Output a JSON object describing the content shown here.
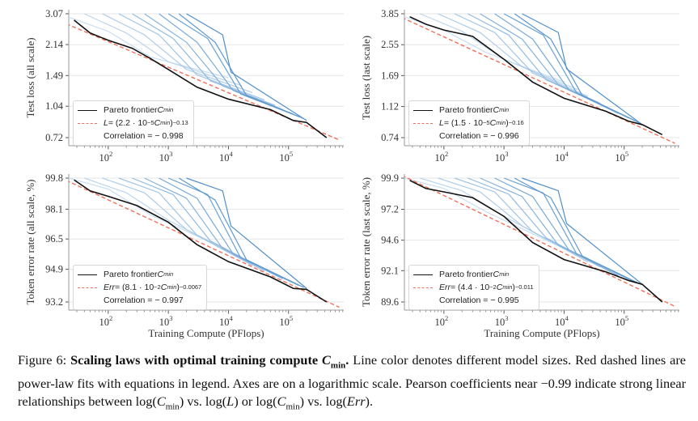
{
  "colors": {
    "frontier": "#111111",
    "fit": "#f0705a",
    "model_light": "#c9def1",
    "model_dark": "#4f8fca",
    "grid": "#e6e6e6"
  },
  "x_label": "Training Compute (PFlops)",
  "chart_data": [
    {
      "type": "line",
      "id": "tl",
      "ylabel": "Test loss (all scale)",
      "xscale": "log",
      "yscale": "log",
      "xlim": [
        22,
        830000
      ],
      "xticks": [
        {
          "v": 100,
          "base": "10",
          "exp": "2"
        },
        {
          "v": 1000,
          "base": "10",
          "exp": "3"
        },
        {
          "v": 10000,
          "base": "10",
          "exp": "4"
        },
        {
          "v": 100000,
          "base": "10",
          "exp": "5"
        }
      ],
      "yticks": [
        "3.07",
        "2.14",
        "1.49",
        "1.04",
        "0.72"
      ],
      "legend": {
        "position": "lower-left",
        "frontier_text": "Pareto frontier ",
        "frontier_sym": "C",
        "frontier_sub": "min",
        "fit_var": "L",
        "fit_pre": " = (2.2 · 10",
        "fit_exp1": "−5",
        "fit_mid": " C",
        "fit_sub": "min",
        "fit_post": ")",
        "fit_exp2": "−0.13",
        "corr": "Correlation  = − 0.998"
      },
      "fit": {
        "a": 2.2e-05,
        "b": -0.13,
        "scale": 1,
        "x_range": [
          20,
          700000
        ]
      },
      "frontier": [
        [
          27,
          2.85
        ],
        [
          50,
          2.45
        ],
        [
          100,
          2.25
        ],
        [
          250,
          2.05
        ],
        [
          500,
          1.82
        ],
        [
          1000,
          1.6
        ],
        [
          3000,
          1.3
        ],
        [
          10000,
          1.13
        ],
        [
          50000,
          1.0
        ],
        [
          120000,
          0.88
        ],
        [
          200000,
          0.86
        ],
        [
          430000,
          0.72
        ]
      ],
      "models": [
        [
          [
            22,
            2.95
          ],
          [
            100,
            2.5
          ],
          [
            500,
            1.85
          ],
          [
            10000,
            1.45
          ]
        ],
        [
          [
            40,
            3.07
          ],
          [
            200,
            2.45
          ],
          [
            1000,
            1.75
          ],
          [
            17000,
            1.32
          ]
        ],
        [
          [
            80,
            3.07
          ],
          [
            400,
            2.4
          ],
          [
            2000,
            1.6
          ],
          [
            25000,
            1.22
          ]
        ],
        [
          [
            150,
            3.07
          ],
          [
            700,
            2.4
          ],
          [
            3000,
            1.5
          ],
          [
            40000,
            1.12
          ]
        ],
        [
          [
            250,
            3.07
          ],
          [
            1200,
            2.3
          ],
          [
            5000,
            1.4
          ],
          [
            60000,
            1.05
          ]
        ],
        [
          [
            400,
            3.07
          ],
          [
            2000,
            2.2
          ],
          [
            8000,
            1.32
          ],
          [
            80000,
            1.0
          ]
        ],
        [
          [
            700,
            3.07
          ],
          [
            3000,
            2.2
          ],
          [
            12000,
            1.25
          ],
          [
            120000,
            0.95
          ]
        ],
        [
          [
            1000,
            3.07
          ],
          [
            4500,
            2.3
          ],
          [
            16000,
            1.2
          ],
          [
            150000,
            0.92
          ]
        ],
        [
          [
            1500,
            3.07
          ],
          [
            6000,
            2.2
          ],
          [
            20000,
            1.18
          ],
          [
            180000,
            0.9
          ]
        ],
        [
          [
            2000,
            3.07
          ],
          [
            8000,
            2.4
          ],
          [
            11000,
            1.55
          ],
          [
            200000,
            0.88
          ]
        ]
      ]
    },
    {
      "type": "line",
      "id": "tr",
      "ylabel": "Test loss (last scale)",
      "xscale": "log",
      "yscale": "log",
      "xlim": [
        22,
        830000
      ],
      "xticks": [
        {
          "v": 100,
          "base": "10",
          "exp": "2"
        },
        {
          "v": 1000,
          "base": "10",
          "exp": "3"
        },
        {
          "v": 10000,
          "base": "10",
          "exp": "4"
        },
        {
          "v": 100000,
          "base": "10",
          "exp": "5"
        }
      ],
      "yticks": [
        "3.85",
        "2.55",
        "1.69",
        "1.12",
        "0.74"
      ],
      "legend": {
        "position": "lower-left",
        "frontier_text": "Pareto frontier ",
        "frontier_sym": "C",
        "frontier_sub": "min",
        "fit_var": "L",
        "fit_pre": " = (1.5 · 10",
        "fit_exp1": "−5",
        "fit_mid": " C",
        "fit_sub": "min",
        "fit_post": ")",
        "fit_exp2": "−0.16",
        "corr": "Correlation  = − 0.996"
      },
      "fit": {
        "a": 1.5e-05,
        "b": -0.16,
        "scale": 1,
        "x_range": [
          20,
          700000
        ]
      },
      "frontier": [
        [
          27,
          3.7
        ],
        [
          50,
          3.35
        ],
        [
          100,
          3.1
        ],
        [
          300,
          2.85
        ],
        [
          1000,
          2.1
        ],
        [
          3000,
          1.55
        ],
        [
          10000,
          1.25
        ],
        [
          50000,
          1.05
        ],
        [
          120000,
          0.92
        ],
        [
          200000,
          0.88
        ],
        [
          430000,
          0.77
        ]
      ],
      "models": [
        [
          [
            22,
            3.7
          ],
          [
            100,
            3.1
          ],
          [
            500,
            2.3
          ],
          [
            10000,
            1.55
          ]
        ],
        [
          [
            40,
            3.85
          ],
          [
            200,
            3.05
          ],
          [
            1000,
            2.1
          ],
          [
            17000,
            1.4
          ]
        ],
        [
          [
            80,
            3.85
          ],
          [
            400,
            3.0
          ],
          [
            2000,
            1.9
          ],
          [
            25000,
            1.28
          ]
        ],
        [
          [
            150,
            3.85
          ],
          [
            700,
            3.0
          ],
          [
            3000,
            1.75
          ],
          [
            40000,
            1.17
          ]
        ],
        [
          [
            250,
            3.85
          ],
          [
            1200,
            2.9
          ],
          [
            5000,
            1.6
          ],
          [
            60000,
            1.08
          ]
        ],
        [
          [
            400,
            3.85
          ],
          [
            2000,
            2.75
          ],
          [
            8000,
            1.5
          ],
          [
            80000,
            1.02
          ]
        ],
        [
          [
            700,
            3.85
          ],
          [
            3000,
            2.75
          ],
          [
            12000,
            1.4
          ],
          [
            120000,
            0.96
          ]
        ],
        [
          [
            1000,
            3.85
          ],
          [
            4500,
            2.9
          ],
          [
            16000,
            1.35
          ],
          [
            150000,
            0.93
          ]
        ],
        [
          [
            1500,
            3.85
          ],
          [
            6000,
            2.75
          ],
          [
            20000,
            1.3
          ],
          [
            180000,
            0.9
          ]
        ],
        [
          [
            2000,
            3.85
          ],
          [
            8000,
            3.0
          ],
          [
            11000,
            1.85
          ],
          [
            200000,
            0.88
          ]
        ]
      ]
    },
    {
      "type": "line",
      "id": "bl",
      "ylabel": "Token error rate (all scale, %)",
      "xscale": "log",
      "yscale": "log",
      "xlim": [
        22,
        830000
      ],
      "xticks": [
        {
          "v": 100,
          "base": "10",
          "exp": "2"
        },
        {
          "v": 1000,
          "base": "10",
          "exp": "3"
        },
        {
          "v": 10000,
          "base": "10",
          "exp": "4"
        },
        {
          "v": 100000,
          "base": "10",
          "exp": "5"
        }
      ],
      "yticks": [
        "99.8",
        "98.1",
        "96.5",
        "94.9",
        "93.2"
      ],
      "legend": {
        "position": "lower-left",
        "frontier_text": "Pareto frontier ",
        "frontier_sym": "C",
        "frontier_sub": "min",
        "fit_var": "Err",
        "fit_pre": " = (8.1 · 10",
        "fit_exp1": "−2",
        "fit_mid": " C",
        "fit_sub": "min",
        "fit_post": ")",
        "fit_exp2": "−0.0067",
        "corr": "Correlation  = − 0.997"
      },
      "fit": {
        "a": 0.081,
        "b": -0.0067,
        "scale": 100,
        "x_range": [
          20,
          700000
        ]
      },
      "frontier": [
        [
          27,
          99.7
        ],
        [
          50,
          99.1
        ],
        [
          100,
          98.8
        ],
        [
          300,
          98.3
        ],
        [
          1000,
          97.4
        ],
        [
          3000,
          96.2
        ],
        [
          10000,
          95.3
        ],
        [
          50000,
          94.5
        ],
        [
          120000,
          93.9
        ],
        [
          200000,
          93.85
        ],
        [
          430000,
          93.2
        ]
      ],
      "models": [
        [
          [
            22,
            99.8
          ],
          [
            100,
            99.2
          ],
          [
            500,
            97.8
          ],
          [
            10000,
            95.9
          ]
        ],
        [
          [
            40,
            99.8
          ],
          [
            200,
            99.0
          ],
          [
            1000,
            97.5
          ],
          [
            17000,
            95.5
          ]
        ],
        [
          [
            80,
            99.8
          ],
          [
            400,
            99.0
          ],
          [
            2000,
            97.0
          ],
          [
            25000,
            95.1
          ]
        ],
        [
          [
            150,
            99.8
          ],
          [
            700,
            99.0
          ],
          [
            3000,
            96.7
          ],
          [
            40000,
            94.8
          ]
        ],
        [
          [
            250,
            99.8
          ],
          [
            1200,
            98.9
          ],
          [
            5000,
            96.4
          ],
          [
            60000,
            94.6
          ]
        ],
        [
          [
            400,
            99.8
          ],
          [
            2000,
            98.7
          ],
          [
            8000,
            96.0
          ],
          [
            80000,
            94.4
          ]
        ],
        [
          [
            700,
            99.8
          ],
          [
            3000,
            98.7
          ],
          [
            12000,
            95.7
          ],
          [
            120000,
            94.2
          ]
        ],
        [
          [
            1000,
            99.8
          ],
          [
            4500,
            98.9
          ],
          [
            16000,
            95.5
          ],
          [
            150000,
            94.05
          ]
        ],
        [
          [
            1500,
            99.8
          ],
          [
            6000,
            98.6
          ],
          [
            20000,
            95.4
          ],
          [
            180000,
            93.95
          ]
        ],
        [
          [
            2000,
            99.8
          ],
          [
            8000,
            99.1
          ],
          [
            11000,
            97.2
          ],
          [
            200000,
            93.9
          ]
        ]
      ]
    },
    {
      "type": "line",
      "id": "br",
      "ylabel": "Token error rate (last scale, %)",
      "xscale": "log",
      "yscale": "log",
      "xlim": [
        22,
        830000
      ],
      "xticks": [
        {
          "v": 100,
          "base": "10",
          "exp": "2"
        },
        {
          "v": 1000,
          "base": "10",
          "exp": "3"
        },
        {
          "v": 10000,
          "base": "10",
          "exp": "4"
        },
        {
          "v": 100000,
          "base": "10",
          "exp": "5"
        }
      ],
      "yticks": [
        "99.9",
        "97.2",
        "94.6",
        "92.1",
        "89.6"
      ],
      "legend": {
        "position": "lower-left",
        "frontier_text": "Pareto frontier ",
        "frontier_sym": "C",
        "frontier_sub": "min",
        "fit_var": "Err",
        "fit_pre": " = (4.4 · 10",
        "fit_exp1": "−2",
        "fit_mid": " C",
        "fit_sub": "min",
        "fit_post": ")",
        "fit_exp2": "−0.011",
        "corr": "Correlation  = − 0.995"
      },
      "fit": {
        "a": 0.044,
        "b": -0.011,
        "scale": 100,
        "x_range": [
          20,
          700000
        ]
      },
      "frontier": [
        [
          27,
          99.7
        ],
        [
          50,
          99.0
        ],
        [
          100,
          98.7
        ],
        [
          300,
          98.2
        ],
        [
          1000,
          96.6
        ],
        [
          3000,
          94.4
        ],
        [
          10000,
          93.0
        ],
        [
          50000,
          92.0
        ],
        [
          120000,
          91.3
        ],
        [
          200000,
          91.0
        ],
        [
          430000,
          89.6
        ]
      ],
      "models": [
        [
          [
            22,
            99.9
          ],
          [
            100,
            99.0
          ],
          [
            500,
            97.0
          ],
          [
            10000,
            93.9
          ]
        ],
        [
          [
            40,
            99.9
          ],
          [
            200,
            98.8
          ],
          [
            1000,
            96.6
          ],
          [
            17000,
            93.3
          ]
        ],
        [
          [
            80,
            99.9
          ],
          [
            400,
            98.7
          ],
          [
            2000,
            95.8
          ],
          [
            25000,
            92.8
          ]
        ],
        [
          [
            150,
            99.9
          ],
          [
            700,
            98.7
          ],
          [
            3000,
            95.3
          ],
          [
            40000,
            92.4
          ]
        ],
        [
          [
            250,
            99.9
          ],
          [
            1200,
            98.5
          ],
          [
            5000,
            94.8
          ],
          [
            60000,
            92.0
          ]
        ],
        [
          [
            400,
            99.9
          ],
          [
            2000,
            98.3
          ],
          [
            8000,
            94.2
          ],
          [
            80000,
            91.7
          ]
        ],
        [
          [
            700,
            99.9
          ],
          [
            3000,
            98.3
          ],
          [
            12000,
            93.8
          ],
          [
            120000,
            91.4
          ]
        ],
        [
          [
            1000,
            99.9
          ],
          [
            4500,
            98.6
          ],
          [
            16000,
            93.5
          ],
          [
            150000,
            91.2
          ]
        ],
        [
          [
            1500,
            99.9
          ],
          [
            6000,
            98.2
          ],
          [
            20000,
            93.3
          ],
          [
            180000,
            91.05
          ]
        ],
        [
          [
            2000,
            99.9
          ],
          [
            8000,
            98.8
          ],
          [
            11000,
            96.0
          ],
          [
            200000,
            91.0
          ]
        ]
      ]
    }
  ],
  "caption": {
    "fig_label": "Figure 6: ",
    "bold_title": "Scaling laws with optimal training compute ",
    "bold_sym": "C",
    "bold_sub": "min",
    "bold_end": ".",
    "part1": " Line color denotes different model sizes. Red dashed lines are power-law fits with equations in legend. Axes are on a logarithmic scale. Pearson coefficients near −0.99 indicate strong linear relationships between log(",
    "sym1": "C",
    "sub1": "min",
    "part2": ") vs. log(",
    "var_l": "L",
    "part3": ") or log(",
    "sym2": "C",
    "sub2": "min",
    "part4": ") vs. log(",
    "var_err": "Err",
    "part5": ")."
  }
}
